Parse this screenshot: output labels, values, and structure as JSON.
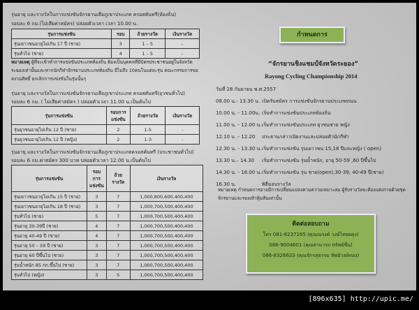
{
  "left": {
    "sec1": {
      "line1": "รุ่นอายุ และรางวัลในการแข่งขันจักรยานเสือภูเขาประเภท ครอสคันทรี(ท้องถิ่น)",
      "line2": "รอบละ 6 กม.(ไม่เสียค่าสมัคร)  ปล่อยตัวเวลา  เวลา 10.00 น.",
      "headers": [
        "รุ่นการแข่งขัน",
        "รอบ",
        "ถ้วยรางวัล",
        "เงินรางวัล"
      ],
      "rows": [
        [
          "รุ่นเยาวชนอายุไม่เกิน 17 ปี (ชาย)",
          "3",
          "1 – 5",
          "-"
        ],
        [
          "รุ่นทั่วไป (ชาย)",
          "4",
          "1 – 5",
          "-"
        ]
      ]
    },
    "note": {
      "label": "หมายเหตุ",
      "text": " ผู้ที่จะเข้าทำการแข่งขันประเภทท้องถิ่น ต้องเป็นบุคคลที่มีบัตรประชาชนอยู่ในจังหวัดระยองเท่านั้นและหากนักกีฬาจักรยานประเภทท้องถิ่น มีไม่ถึง 10คนในแต่ละรุ่น คณะกรรมการขอสงวนสิทธิ์ ยกเลิกการแข่งขันในรุ่นนั้นๆ"
    },
    "sec2": {
      "line1": "รุ่นอายุ และรางวัลในการแข่งขันจักรยานเสือภูเขาประเภท ครอสคันทรี(ยุวชนทั่วไป)",
      "line2": "รอบละ 6 กม. ( ไม่เสียค่าสมัคร ) ปล่อยตัวเวลา 11.00 น.เป็นต้นไป",
      "headers": [
        "รุ่นการแข่งขัน",
        "รอบการแข่งขัน",
        "ถ้วยรางวัล",
        "เงินรางวัล"
      ],
      "rows": [
        [
          "รุ่นยุวชนอายุไม่เกิน 12 ปี (ชาย)",
          "2",
          "1-5",
          "-"
        ],
        [
          "รุ่นยุวชนอายุไม่เกิน 12 ปี (หญิง)",
          "2",
          "1-3",
          "-"
        ]
      ]
    },
    "sec3": {
      "line1": "รุ่นอายุ และรางวัลในการแข่งขันจักรยานเสือภูเขาประเภทครอสคันทรี  (ประชาชนทั่วไป)",
      "line2": "รอบละ 6 กม.ค่าสมัคร 300 บาท ปล่อยตัวเวลา 12.00 น.เป็นต้นไป",
      "headers": [
        "รุ่นการแข่งขัน",
        "รอบการแข่งขัน",
        "ถ้วยรางวัล",
        "เงินรางวัล"
      ],
      "rows": [
        [
          "รุ่นเยาวชนอายุไม่เกิน 15 ปี (ชาย)",
          "3",
          "7",
          "1,000,800,600,400,400"
        ],
        [
          "รุ่นเยาวชนอายุไม่เกิน 18 ปี (ชาย)",
          "3",
          "7",
          "1,000,700,500,400,400"
        ],
        [
          "รุ่นทั่วไป (ชาย)",
          "5",
          "7",
          "1,000,700,500,400,400"
        ],
        [
          "รุ่นอายุ 30-39ปี (ชาย)",
          "4",
          "7",
          "1,000,700,500,400,400"
        ],
        [
          "รุ่นอายุ 40-49 ปี (ชาย)",
          "4",
          "7",
          "1,000,700,500,400,400"
        ],
        [
          "รุ่นอายุ 50 – 59 ปี (ชาย)",
          "3",
          "7",
          "1,000,700,500,400,400"
        ],
        [
          "รุ่นอายุ 60 ปีขึ้นไป (ชาย)",
          "3",
          "7",
          "1,000,700,500,400,400"
        ],
        [
          "รุ่นน้ำหนัก 85 กก.ขึ้นไป  (ชาย)",
          "3",
          "7",
          "1,000,700,500,400,400"
        ],
        [
          "รุ่นทั่วไป (หญิง)",
          "3",
          "5",
          "1,000,700,500,400,400"
        ]
      ]
    }
  },
  "right": {
    "badge": "กำหนดการ",
    "title_th": "“จักรยานชิงแชมป์จังหวัดระยอง”",
    "title_en": "Rayong Cycling Championship 2014",
    "date": "วันที่ 28  กันยายน  พ.ศ.2557",
    "schedule": [
      [
        "08.00 น.- 13.30 น.",
        "เปิดรับสมัคร การแข่งขันจักรยานประเภทถนน"
      ],
      [
        "10.00 น. -  11.00น.",
        "เริ่มทำการแข่งขันประเภทท้องถิ่น"
      ],
      [
        "11.00 น. - 12.00 น.",
        "เริ่มทำการแข่งขันประเภท ยุวชนชาย หญิง"
      ],
      [
        "12.10 น .- 12.20",
        "ประธานกล่าวเปิดงานและปล่อยตัวนักกีฬา"
      ],
      [
        "12.30 น. - 13.30 น.",
        "เริ่มทำการแข่งขัน รุ่นเยาวชน 15,18 ปีและหญิง ( open)"
      ],
      [
        "13.30 น.– 14.30",
        "เริ่มทำการแข่งขัน รุ่นน้ำหนัก, อายุ 50-59 ,60 ปีขึ้นไป"
      ],
      [
        "14.30 น. - 16.00 น.",
        "เริ่มทำการแข่งขัน รุ่น ชาย(open),30-39, 40-49 ปี(ชาย)"
      ],
      [
        "16.30 น.",
        "พิธีมอบรางวัล"
      ]
    ],
    "note": "หมายเหตุ กำหนดการอาจมีการเปลี่ยนแปลงตามความเหมาะสม ผู้รับรางวัลจะต้องแต่งกายด้วยชุดจักรยานและรองเท้าหุ้มส้นเท่านั้น",
    "contact": {
      "title": "ติดต่อสอบถาม",
      "lines": [
        "โทร 081-8237165 (คุณณรงค์ วงษ์ไทยผดุง)",
        "086-9004601 (คุณสามารถ  ทรัพย์ชื่น)",
        "086-8326633 (คุณจักรสุธรรม  ทิพย์วงษ์ทอง)"
      ]
    }
  },
  "footer": "[896x635] http://upic.me/"
}
